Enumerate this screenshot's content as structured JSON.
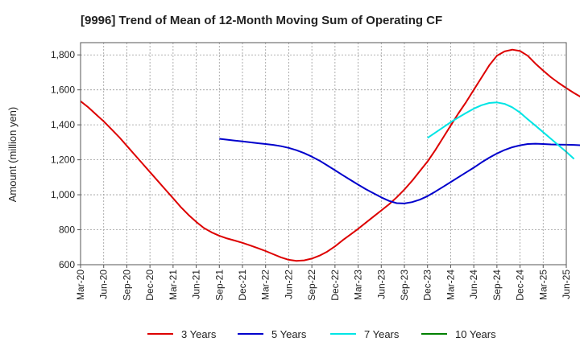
{
  "chart_data": {
    "type": "line",
    "title": "[9996]  Trend of Mean of 12-Month Moving Sum of Operating CF",
    "xlabel": "",
    "ylabel": "Amount (million yen)",
    "ylim": [
      600,
      1870
    ],
    "y_ticks": [
      600,
      800,
      1000,
      1200,
      1400,
      1600,
      1800
    ],
    "y_tick_labels": [
      "600",
      "800",
      "1,000",
      "1,200",
      "1,400",
      "1,600",
      "1,800"
    ],
    "x_ticks": [
      "Mar-20",
      "Jun-20",
      "Sep-20",
      "Dec-20",
      "Mar-21",
      "Jun-21",
      "Sep-21",
      "Dec-21",
      "Mar-22",
      "Jun-22",
      "Sep-22",
      "Dec-22",
      "Mar-23",
      "Jun-23",
      "Sep-23",
      "Dec-23",
      "Mar-24",
      "Jun-24",
      "Sep-24",
      "Dec-24",
      "Mar-25",
      "Jun-25"
    ],
    "grid": true,
    "legend_position": "bottom",
    "series": [
      {
        "name": "3 Years",
        "color": "#dd0000",
        "start_index": 0,
        "values": [
          1535,
          1500,
          1460,
          1420,
          1375,
          1330,
          1280,
          1230,
          1180,
          1130,
          1080,
          1030,
          980,
          930,
          885,
          845,
          810,
          785,
          765,
          750,
          738,
          725,
          710,
          695,
          678,
          660,
          642,
          628,
          622,
          625,
          635,
          652,
          675,
          705,
          740,
          772,
          805,
          840,
          875,
          910,
          945,
          985,
          1030,
          1080,
          1135,
          1190,
          1255,
          1325,
          1395,
          1465,
          1530,
          1600,
          1670,
          1740,
          1795,
          1820,
          1830,
          1822,
          1795,
          1750,
          1710,
          1672,
          1640,
          1610,
          1582,
          1556,
          1535
        ]
      },
      {
        "name": "5 Years",
        "color": "#0000cc",
        "start_index": 18,
        "values": [
          1320,
          1315,
          1310,
          1305,
          1300,
          1295,
          1290,
          1285,
          1278,
          1268,
          1255,
          1238,
          1218,
          1195,
          1168,
          1140,
          1112,
          1085,
          1058,
          1032,
          1008,
          985,
          965,
          952,
          950,
          958,
          972,
          992,
          1018,
          1045,
          1072,
          1100,
          1128,
          1155,
          1185,
          1212,
          1236,
          1256,
          1272,
          1283,
          1290,
          1292,
          1290,
          1288,
          1287,
          1286,
          1285,
          1283,
          1282
        ]
      },
      {
        "name": "7 Years",
        "color": "#00e5e5",
        "start_index": 45,
        "values": [
          1325,
          1355,
          1385,
          1415,
          1442,
          1468,
          1492,
          1512,
          1525,
          1528,
          1520,
          1500,
          1470,
          1432,
          1395,
          1358,
          1320,
          1283,
          1245,
          1205
        ]
      },
      {
        "name": "10 Years",
        "color": "#008000",
        "start_index": 0,
        "values": []
      }
    ]
  }
}
